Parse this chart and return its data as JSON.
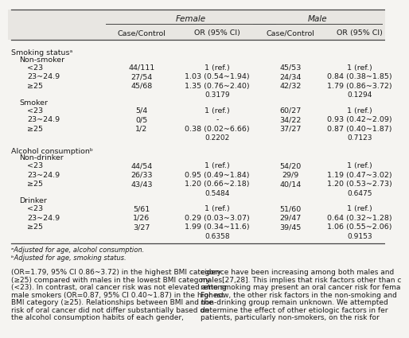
{
  "sections": [
    {
      "section_label": "Smoking statusᵃ",
      "subsections": [
        {
          "sub_label": "Non-smoker",
          "rows": [
            {
              "label": "<23",
              "f_cc": "44/111",
              "f_or": "1 (ref.)",
              "m_cc": "45/53",
              "m_or": "1 (ref.)"
            },
            {
              "label": "23~24.9",
              "f_cc": "27/54",
              "f_or": "1.03 (0.54~1.94)",
              "m_cc": "24/34",
              "m_or": "0.84 (0.38~1.85)"
            },
            {
              "label": "≥25",
              "f_cc": "45/68",
              "f_or": "1.35 (0.76~2.40)",
              "m_cc": "42/32",
              "m_or": "1.79 (0.86~3.72)"
            },
            {
              "label": "",
              "f_cc": "",
              "f_or": "0.3179",
              "m_cc": "",
              "m_or": "0.1294"
            }
          ]
        },
        {
          "sub_label": "Smoker",
          "rows": [
            {
              "label": "<23",
              "f_cc": "5/4",
              "f_or": "1 (ref.)",
              "m_cc": "60/27",
              "m_or": "1 (ref.)"
            },
            {
              "label": "23~24.9",
              "f_cc": "0/5",
              "f_or": "-",
              "m_cc": "34/22",
              "m_or": "0.93 (0.42~2.09)"
            },
            {
              "label": "≥25",
              "f_cc": "1/2",
              "f_or": "0.38 (0.02~6.66)",
              "m_cc": "37/27",
              "m_or": "0.87 (0.40~1.87)"
            },
            {
              "label": "",
              "f_cc": "",
              "f_or": "0.2202",
              "m_cc": "",
              "m_or": "0.7123"
            }
          ]
        }
      ]
    },
    {
      "section_label": "Alcohol consumptionᵇ",
      "subsections": [
        {
          "sub_label": "Non-drinker",
          "rows": [
            {
              "label": "<23",
              "f_cc": "44/54",
              "f_or": "1 (ref.)",
              "m_cc": "54/20",
              "m_or": "1 (ref.)"
            },
            {
              "label": "23~24.9",
              "f_cc": "26/33",
              "f_or": "0.95 (0.49~1.84)",
              "m_cc": "29/9",
              "m_or": "1.19 (0.47~3.02)"
            },
            {
              "label": "≥25",
              "f_cc": "43/43",
              "f_or": "1.20 (0.66~2.18)",
              "m_cc": "40/14",
              "m_or": "1.20 (0.53~2.73)"
            },
            {
              "label": "",
              "f_cc": "",
              "f_or": "0.5484",
              "m_cc": "",
              "m_or": "0.6475"
            }
          ]
        },
        {
          "sub_label": "Drinker",
          "rows": [
            {
              "label": "<23",
              "f_cc": "5/61",
              "f_or": "1 (ref.)",
              "m_cc": "51/60",
              "m_or": "1 (ref.)"
            },
            {
              "label": "23~24.9",
              "f_cc": "1/26",
              "f_or": "0.29 (0.03~3.07)",
              "m_cc": "29/47",
              "m_or": "0.64 (0.32~1.28)"
            },
            {
              "label": "≥25",
              "f_cc": "3/27",
              "f_or": "1.99 (0.34~11.6)",
              "m_cc": "39/45",
              "m_or": "1.06 (0.55~2.06)"
            },
            {
              "label": "",
              "f_cc": "",
              "f_or": "0.6358",
              "m_cc": "",
              "m_or": "0.9153"
            }
          ]
        }
      ]
    }
  ],
  "footnotes": [
    "ᵃAdjusted for age, alcohol consumption.",
    "ᵇAdjusted for age, smoking status."
  ],
  "body_text_left": [
    "(OR=1.79, 95% CI 0.86~3.72) in the highest BMI category",
    "(≥25) compared with males in the lowest BMI category",
    "(<23). In contrast, oral cancer risk was not elevated among",
    "male smokers (OR=0.87, 95% CI 0.40~1.87) in the highest",
    "BMI category (≥25). Relationships between BMI and the",
    "risk of oral cancer did not differ substantially based on",
    "the alcohol consumption habits of each gender,"
  ],
  "body_text_right": [
    "cidence have been increasing among both males and",
    "males[27,28]. This implies that risk factors other than c",
    "rette smoking may present an oral cancer risk for fema",
    "For now, the other risk factors in the non-smoking and",
    "non-drinking group remain unknown. We attempted",
    "determine the effect of other etiologic factors in fer",
    "patients, particularly non-smokers, on the risk for"
  ],
  "bg_color": "#f5f4f1",
  "header_bg": "#e8e6e2",
  "line_color": "#444444",
  "text_color": "#1a1a1a",
  "font_size": 6.8,
  "header_font_size": 7.5,
  "body_font_size": 6.5
}
